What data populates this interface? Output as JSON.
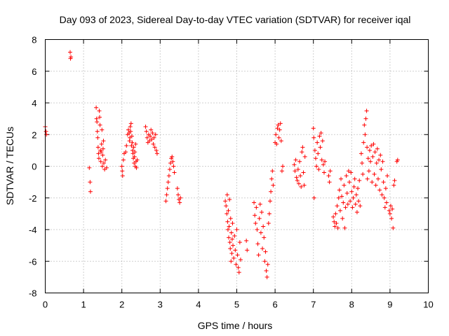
{
  "chart_data": {
    "type": "scatter",
    "title": "Day 093 of 2023, Sidereal Day-to-day VTEC variation (SDTVAR) for receiver iqal",
    "xlabel": "GPS time / hours",
    "ylabel": "SDTVAR / TECUs",
    "xlim": [
      0,
      10
    ],
    "ylim": [
      -8,
      8
    ],
    "x_ticks": [
      "0",
      "1",
      "2",
      "3",
      "4",
      "5",
      "6",
      "7",
      "8",
      "9",
      "10"
    ],
    "y_ticks": [
      "8",
      "6",
      "4",
      "2",
      "0",
      "-2",
      "-4",
      "-6",
      "-8"
    ],
    "marker": "+",
    "marker_color": "#ff0000",
    "series": [
      {
        "name": "SDTVAR",
        "points": [
          [
            0.0,
            2.5
          ],
          [
            0.02,
            2.2
          ],
          [
            0.03,
            2.0
          ],
          [
            0.65,
            7.2
          ],
          [
            0.66,
            6.8
          ],
          [
            0.67,
            6.9
          ],
          [
            1.15,
            -0.1
          ],
          [
            1.17,
            -1.0
          ],
          [
            1.18,
            -1.6
          ],
          [
            1.33,
            3.7
          ],
          [
            1.34,
            3.0
          ],
          [
            1.35,
            2.8
          ],
          [
            1.36,
            2.2
          ],
          [
            1.37,
            1.8
          ],
          [
            1.38,
            1.2
          ],
          [
            1.39,
            0.8
          ],
          [
            1.4,
            0.5
          ],
          [
            1.41,
            3.5
          ],
          [
            1.42,
            3.1
          ],
          [
            1.43,
            2.6
          ],
          [
            1.44,
            1.0
          ],
          [
            1.45,
            0.3
          ],
          [
            1.46,
            0.9
          ],
          [
            1.47,
            1.4
          ],
          [
            1.48,
            2.3
          ],
          [
            1.49,
            0.0
          ],
          [
            1.5,
            0.7
          ],
          [
            1.51,
            1.1
          ],
          [
            1.52,
            1.6
          ],
          [
            1.53,
            0.2
          ],
          [
            1.55,
            -0.2
          ],
          [
            1.57,
            0.4
          ],
          [
            1.6,
            -0.1
          ],
          [
            2.0,
            0.0
          ],
          [
            2.01,
            -0.3
          ],
          [
            2.02,
            -0.6
          ],
          [
            2.04,
            0.4
          ],
          [
            2.06,
            0.8
          ],
          [
            2.1,
            0.9
          ],
          [
            2.12,
            1.3
          ],
          [
            2.15,
            2.0
          ],
          [
            2.17,
            2.3
          ],
          [
            2.19,
            2.1
          ],
          [
            2.2,
            1.6
          ],
          [
            2.21,
            1.8
          ],
          [
            2.22,
            2.5
          ],
          [
            2.23,
            2.2
          ],
          [
            2.24,
            2.7
          ],
          [
            2.25,
            1.3
          ],
          [
            2.26,
            1.9
          ],
          [
            2.27,
            1.5
          ],
          [
            2.28,
            1.0
          ],
          [
            2.29,
            0.8
          ],
          [
            2.3,
            0.5
          ],
          [
            2.31,
            1.2
          ],
          [
            2.32,
            0.2
          ],
          [
            2.33,
            0.6
          ],
          [
            2.34,
            0.9
          ],
          [
            2.35,
            0.0
          ],
          [
            2.36,
            1.4
          ],
          [
            2.37,
            0.3
          ],
          [
            2.38,
            -0.1
          ],
          [
            2.4,
            0.4
          ],
          [
            2.62,
            2.5
          ],
          [
            2.64,
            2.2
          ],
          [
            2.66,
            1.8
          ],
          [
            2.68,
            1.5
          ],
          [
            2.7,
            2.0
          ],
          [
            2.72,
            1.6
          ],
          [
            2.74,
            1.9
          ],
          [
            2.76,
            2.3
          ],
          [
            2.78,
            1.7
          ],
          [
            2.8,
            2.1
          ],
          [
            2.82,
            1.4
          ],
          [
            2.84,
            1.8
          ],
          [
            2.86,
            1.2
          ],
          [
            2.88,
            2.0
          ],
          [
            2.9,
            1.0
          ],
          [
            2.92,
            0.8
          ],
          [
            3.15,
            -2.2
          ],
          [
            3.17,
            -1.8
          ],
          [
            3.19,
            -1.4
          ],
          [
            3.21,
            -1.0
          ],
          [
            3.23,
            -0.6
          ],
          [
            3.25,
            -0.2
          ],
          [
            3.27,
            0.2
          ],
          [
            3.29,
            0.5
          ],
          [
            3.31,
            0.6
          ],
          [
            3.33,
            0.3
          ],
          [
            3.35,
            0.0
          ],
          [
            3.37,
            -0.4
          ],
          [
            3.45,
            -1.4
          ],
          [
            3.47,
            -1.8
          ],
          [
            3.49,
            -2.1
          ],
          [
            3.51,
            -2.3
          ],
          [
            3.53,
            -2.0
          ],
          [
            4.7,
            -2.2
          ],
          [
            4.72,
            -2.5
          ],
          [
            4.74,
            -3.0
          ],
          [
            4.75,
            -1.8
          ],
          [
            4.76,
            -3.5
          ],
          [
            4.77,
            -4.0
          ],
          [
            4.78,
            -2.8
          ],
          [
            4.79,
            -4.5
          ],
          [
            4.8,
            -3.8
          ],
          [
            4.81,
            -2.1
          ],
          [
            4.82,
            -4.8
          ],
          [
            4.83,
            -5.2
          ],
          [
            4.84,
            -3.3
          ],
          [
            4.85,
            -6.0
          ],
          [
            4.86,
            -4.2
          ],
          [
            4.87,
            -5.5
          ],
          [
            4.88,
            -4.6
          ],
          [
            4.89,
            -3.6
          ],
          [
            4.9,
            -5.0
          ],
          [
            4.92,
            -5.8
          ],
          [
            4.94,
            -4.4
          ],
          [
            4.96,
            -5.3
          ],
          [
            4.98,
            -6.2
          ],
          [
            5.0,
            -4.0
          ],
          [
            5.02,
            -5.6
          ],
          [
            5.04,
            -6.4
          ],
          [
            5.06,
            -6.7
          ],
          [
            5.08,
            -4.8
          ],
          [
            5.1,
            -5.9
          ],
          [
            5.25,
            -4.7
          ],
          [
            5.27,
            -5.3
          ],
          [
            5.45,
            -2.3
          ],
          [
            5.47,
            -3.1
          ],
          [
            5.49,
            -3.6
          ],
          [
            5.51,
            -2.6
          ],
          [
            5.53,
            -4.0
          ],
          [
            5.55,
            -4.9
          ],
          [
            5.57,
            -5.6
          ],
          [
            5.59,
            -3.3
          ],
          [
            5.61,
            -2.4
          ],
          [
            5.63,
            -4.2
          ],
          [
            5.65,
            -2.9
          ],
          [
            5.67,
            -5.2
          ],
          [
            5.69,
            -3.8
          ],
          [
            5.71,
            -4.5
          ],
          [
            5.73,
            -6.0
          ],
          [
            5.75,
            -5.4
          ],
          [
            5.77,
            -6.6
          ],
          [
            5.79,
            -7.0
          ],
          [
            5.81,
            -6.2
          ],
          [
            5.83,
            -3.6
          ],
          [
            5.85,
            -3.0
          ],
          [
            5.87,
            -2.2
          ],
          [
            5.89,
            -1.6
          ],
          [
            5.91,
            -0.8
          ],
          [
            5.93,
            -0.3
          ],
          [
            5.95,
            -1.2
          ],
          [
            6.0,
            1.5
          ],
          [
            6.02,
            2.0
          ],
          [
            6.04,
            1.4
          ],
          [
            6.06,
            2.4
          ],
          [
            6.08,
            2.6
          ],
          [
            6.1,
            1.8
          ],
          [
            6.12,
            2.3
          ],
          [
            6.14,
            2.7
          ],
          [
            6.16,
            1.6
          ],
          [
            6.18,
            -0.3
          ],
          [
            6.2,
            0.0
          ],
          [
            6.5,
            0.1
          ],
          [
            6.52,
            -0.3
          ],
          [
            6.54,
            0.4
          ],
          [
            6.56,
            -0.7
          ],
          [
            6.58,
            -0.9
          ],
          [
            6.6,
            -0.2
          ],
          [
            6.62,
            -1.1
          ],
          [
            6.64,
            0.3
          ],
          [
            6.66,
            -0.6
          ],
          [
            6.68,
            -1.3
          ],
          [
            6.7,
            0.9
          ],
          [
            6.72,
            1.2
          ],
          [
            6.74,
            -0.4
          ],
          [
            6.76,
            -1.2
          ],
          [
            6.78,
            0.6
          ],
          [
            7.0,
            2.4
          ],
          [
            7.01,
            1.8
          ],
          [
            7.02,
            -2.0
          ],
          [
            7.04,
            1.0
          ],
          [
            7.06,
            0.5
          ],
          [
            7.08,
            0.0
          ],
          [
            7.1,
            1.5
          ],
          [
            7.12,
            0.8
          ],
          [
            7.14,
            -0.2
          ],
          [
            7.16,
            1.9
          ],
          [
            7.18,
            1.2
          ],
          [
            7.2,
            2.1
          ],
          [
            7.22,
            0.4
          ],
          [
            7.24,
            1.6
          ],
          [
            7.26,
            0.1
          ],
          [
            7.28,
            -0.4
          ],
          [
            7.3,
            0.3
          ],
          [
            7.4,
            -0.6
          ],
          [
            7.42,
            -1.0
          ],
          [
            7.44,
            -0.3
          ],
          [
            7.52,
            -3.2
          ],
          [
            7.54,
            -3.5
          ],
          [
            7.56,
            -3.8
          ],
          [
            7.58,
            -3.0
          ],
          [
            7.6,
            -3.6
          ],
          [
            7.62,
            -2.5
          ],
          [
            7.64,
            -3.9
          ],
          [
            7.66,
            -2.0
          ],
          [
            7.68,
            -1.5
          ],
          [
            7.7,
            -2.8
          ],
          [
            7.72,
            -0.8
          ],
          [
            7.74,
            -1.9
          ],
          [
            7.76,
            -3.3
          ],
          [
            7.78,
            -2.3
          ],
          [
            7.8,
            -1.2
          ],
          [
            7.82,
            -3.9
          ],
          [
            7.84,
            -2.6
          ],
          [
            7.86,
            -0.6
          ],
          [
            7.88,
            -1.7
          ],
          [
            7.9,
            -2.4
          ],
          [
            7.92,
            -0.3
          ],
          [
            7.94,
            -1.0
          ],
          [
            7.96,
            -2.2
          ],
          [
            7.98,
            -0.4
          ],
          [
            8.0,
            -1.6
          ],
          [
            8.02,
            -2.6
          ],
          [
            8.04,
            -2.0
          ],
          [
            8.06,
            -1.3
          ],
          [
            8.08,
            -0.8
          ],
          [
            8.1,
            -2.4
          ],
          [
            8.12,
            -1.8
          ],
          [
            8.14,
            -2.9
          ],
          [
            8.16,
            -1.4
          ],
          [
            8.18,
            -2.2
          ],
          [
            8.2,
            -0.9
          ],
          [
            8.22,
            -2.5
          ],
          [
            8.25,
            0.8
          ],
          [
            8.27,
            0.2
          ],
          [
            8.29,
            -0.5
          ],
          [
            8.31,
            1.5
          ],
          [
            8.33,
            2.6
          ],
          [
            8.35,
            2.0
          ],
          [
            8.37,
            3.0
          ],
          [
            8.39,
            3.5
          ],
          [
            8.4,
            1.2
          ],
          [
            8.41,
            -0.8
          ],
          [
            8.43,
            0.5
          ],
          [
            8.45,
            -0.3
          ],
          [
            8.47,
            1.0
          ],
          [
            8.49,
            0.3
          ],
          [
            8.51,
            1.3
          ],
          [
            8.53,
            -1.0
          ],
          [
            8.55,
            0.6
          ],
          [
            8.57,
            1.4
          ],
          [
            8.59,
            -0.5
          ],
          [
            8.61,
            0.9
          ],
          [
            8.63,
            -1.2
          ],
          [
            8.65,
            0.2
          ],
          [
            8.67,
            1.1
          ],
          [
            8.69,
            -0.8
          ],
          [
            8.71,
            0.4
          ],
          [
            8.73,
            -1.5
          ],
          [
            8.75,
            0.7
          ],
          [
            8.77,
            -0.2
          ],
          [
            8.79,
            -1.8
          ],
          [
            8.81,
            0.3
          ],
          [
            8.83,
            -1.0
          ],
          [
            8.85,
            -2.0
          ],
          [
            8.87,
            -2.6
          ],
          [
            8.89,
            -1.4
          ],
          [
            8.91,
            -2.3
          ],
          [
            8.93,
            -0.6
          ],
          [
            8.98,
            -2.8
          ],
          [
            9.0,
            -3.0
          ],
          [
            9.02,
            -2.5
          ],
          [
            9.04,
            -3.3
          ],
          [
            9.06,
            -2.7
          ],
          [
            9.08,
            -3.9
          ],
          [
            9.1,
            -1.2
          ],
          [
            9.12,
            -0.9
          ],
          [
            9.18,
            0.3
          ],
          [
            9.2,
            0.4
          ]
        ]
      }
    ]
  }
}
